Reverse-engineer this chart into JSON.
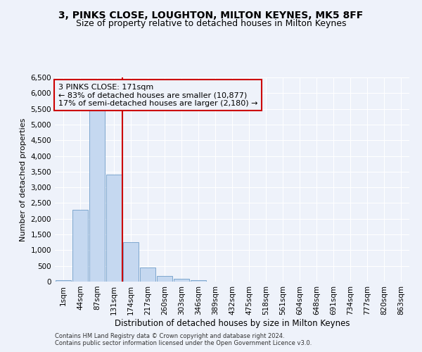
{
  "title": "3, PINKS CLOSE, LOUGHTON, MILTON KEYNES, MK5 8FF",
  "subtitle": "Size of property relative to detached houses in Milton Keynes",
  "xlabel": "Distribution of detached houses by size in Milton Keynes",
  "ylabel": "Number of detached properties",
  "footer_line1": "Contains HM Land Registry data © Crown copyright and database right 2024.",
  "footer_line2": "Contains public sector information licensed under the Open Government Licence v3.0.",
  "annotation_title": "3 PINKS CLOSE: 171sqm",
  "annotation_line1": "← 83% of detached houses are smaller (10,877)",
  "annotation_line2": "17% of semi-detached houses are larger (2,180) →",
  "categories": [
    "1sqm",
    "44sqm",
    "87sqm",
    "131sqm",
    "174sqm",
    "217sqm",
    "260sqm",
    "303sqm",
    "346sqm",
    "389sqm",
    "432sqm",
    "475sqm",
    "518sqm",
    "561sqm",
    "604sqm",
    "648sqm",
    "691sqm",
    "734sqm",
    "777sqm",
    "820sqm",
    "863sqm"
  ],
  "values": [
    50,
    2280,
    5500,
    3400,
    1250,
    450,
    170,
    90,
    50,
    0,
    0,
    0,
    0,
    0,
    0,
    0,
    0,
    0,
    0,
    0,
    0
  ],
  "bar_color": "#c5d8f0",
  "bar_edge_color": "#5a8fc0",
  "vline_color": "#cc0000",
  "vline_index": 4,
  "ylim": [
    0,
    6500
  ],
  "yticks": [
    0,
    500,
    1000,
    1500,
    2000,
    2500,
    3000,
    3500,
    4000,
    4500,
    5000,
    5500,
    6000,
    6500
  ],
  "background_color": "#eef2fa",
  "grid_color": "#ffffff",
  "title_fontsize": 10,
  "subtitle_fontsize": 9,
  "annotation_fontsize": 8,
  "axis_fontsize": 7.5,
  "ylabel_fontsize": 8,
  "xlabel_fontsize": 8.5,
  "footer_fontsize": 6
}
